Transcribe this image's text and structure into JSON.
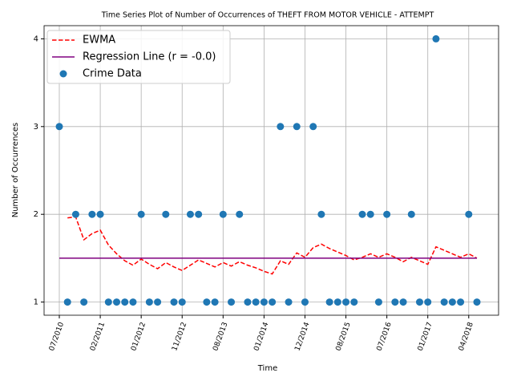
{
  "chart_data": {
    "type": "line",
    "title": "Time Series Plot of Number of Occurrences of THEFT FROM MOTOR VEHICLE - ATTEMPT",
    "x_label": "Time",
    "y_label": "Number of Occurrences",
    "categories": [
      "07/2010",
      null,
      null,
      null,
      null,
      "02/2011",
      null,
      null,
      null,
      null,
      "01/2012",
      null,
      null,
      null,
      null,
      "11/2012",
      null,
      null,
      null,
      null,
      "08/2013",
      null,
      null,
      null,
      null,
      "01/2014",
      null,
      null,
      null,
      null,
      "12/2014",
      null,
      null,
      null,
      null,
      "08/2015",
      null,
      null,
      null,
      null,
      "07/2016",
      null,
      null,
      null,
      null,
      "01/2017",
      null,
      null,
      null,
      null,
      "04/2018",
      null
    ],
    "ylim": [
      0.85,
      4.15
    ],
    "yticks": [
      1,
      2,
      3,
      4
    ],
    "grid": true,
    "legend": "upper left",
    "series": [
      {
        "name": "EWMA",
        "type": "line",
        "dashed": true,
        "color": "#ff0000",
        "values": [
          null,
          1.96,
          1.97,
          1.71,
          1.78,
          1.82,
          1.65,
          1.55,
          1.47,
          1.42,
          1.49,
          1.43,
          1.38,
          1.45,
          1.4,
          1.36,
          1.42,
          1.48,
          1.44,
          1.4,
          1.45,
          1.41,
          1.46,
          1.42,
          1.39,
          1.35,
          1.32,
          1.47,
          1.43,
          1.56,
          1.51,
          1.62,
          1.66,
          1.61,
          1.57,
          1.53,
          1.48,
          1.51,
          1.55,
          1.51,
          1.55,
          1.51,
          1.46,
          1.51,
          1.47,
          1.43,
          1.63,
          1.59,
          1.55,
          1.51,
          1.55,
          1.5
        ]
      },
      {
        "name": "Regression Line (r = -0.0)",
        "type": "line",
        "dashed": false,
        "color": "#800080",
        "values": [
          1.5,
          1.5,
          1.5,
          1.5,
          1.5,
          1.5,
          1.5,
          1.5,
          1.5,
          1.5,
          1.5,
          1.5,
          1.5,
          1.5,
          1.5,
          1.5,
          1.5,
          1.5,
          1.5,
          1.5,
          1.5,
          1.5,
          1.5,
          1.5,
          1.5,
          1.5,
          1.5,
          1.5,
          1.5,
          1.5,
          1.5,
          1.5,
          1.5,
          1.5,
          1.5,
          1.5,
          1.5,
          1.5,
          1.5,
          1.5,
          1.5,
          1.5,
          1.5,
          1.5,
          1.5,
          1.5,
          1.5,
          1.5,
          1.5,
          1.5,
          1.5,
          1.5
        ]
      },
      {
        "name": "Crime Data",
        "type": "scatter",
        "color": "#1f77b4",
        "values": [
          3,
          1,
          2,
          1,
          2,
          2,
          1,
          1,
          1,
          1,
          2,
          1,
          1,
          2,
          1,
          1,
          2,
          2,
          1,
          1,
          2,
          1,
          2,
          1,
          1,
          1,
          1,
          3,
          1,
          3,
          1,
          3,
          2,
          1,
          1,
          1,
          1,
          2,
          2,
          1,
          2,
          1,
          1,
          2,
          1,
          1,
          4,
          1,
          1,
          1,
          2,
          1
        ]
      }
    ]
  }
}
